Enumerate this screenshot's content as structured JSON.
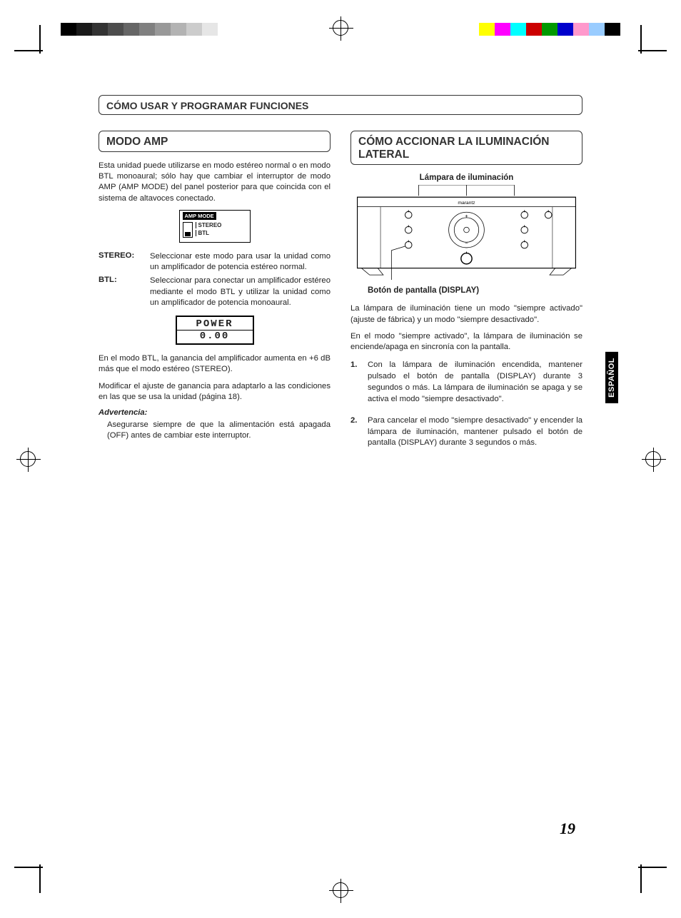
{
  "printMarks": {
    "grayBar": [
      "#000000",
      "#1a1a1a",
      "#333333",
      "#4d4d4d",
      "#666666",
      "#808080",
      "#999999",
      "#b3b3b3",
      "#cccccc",
      "#e6e6e6",
      "#ffffff"
    ],
    "colorBar": [
      "#ffff00",
      "#ff00ff",
      "#00ffff",
      "#cc0000",
      "#009900",
      "#0000cc",
      "#ff99cc",
      "#99ccff",
      "#000000"
    ]
  },
  "header": {
    "title": "CÓMO USAR Y PROGRAMAR FUNCIONES"
  },
  "left": {
    "title": "MODO AMP",
    "intro": "Esta unidad puede utilizarse en modo estéreo normal o en modo BTL monoaural; sólo hay que cambiar el interruptor de modo AMP (AMP MODE) del panel posterior para que coincida con el sistema de altavoces conectado.",
    "switch": {
      "title": "AMP MODE",
      "opt1": "STEREO",
      "opt2": "BTL"
    },
    "defs": {
      "stereo_t": "STEREO:",
      "stereo_d": "Seleccionar este modo para usar la unidad como un amplificador de potencia estéreo normal.",
      "btl_t": "BTL:",
      "btl_d": "Seleccionar para conectar un amplificador estéreo mediante el modo BTL y utilizar la unidad como un amplificador de potencia monoaural."
    },
    "lcd": {
      "line1": "POWER",
      "line2": "0.00"
    },
    "para2": "En el modo BTL, la ganancia del amplificador aumenta en +6 dB más que el modo estéreo (STEREO).",
    "para3": "Modificar el ajuste de ganancia para adaptarlo a las condiciones en las que se usa la unidad (página 18).",
    "warn_t": "Advertencia:",
    "warn_b": "Asegurarse siempre de que la alimentación está apagada (OFF) antes de cambiar este interruptor."
  },
  "right": {
    "title": "CÓMO ACCIONAR LA ILUMINACIÓN LATERAL",
    "label_top": "Lámpara de iluminación",
    "label_bot": "Botón de pantalla (DISPLAY)",
    "device_brand": "marantz",
    "para1": "La lámpara de iluminación tiene un modo \"siempre activado\" (ajuste de fábrica) y un modo \"siempre desactivado\".",
    "para2": "En el modo \"siempre activado\", la lámpara de iluminación se enciende/apaga en sincronía con la pantalla.",
    "step1": "Con la lámpara de iluminación encendida, mantener pulsado el botón de pantalla (DISPLAY) durante 3 segundos o más. La lámpara de iluminación se apaga y se activa el modo \"siempre desactivado\".",
    "step2": "Para cancelar el modo \"siempre desactivado\" y encender la lámpara de iluminación, mantener pulsado el botón de pantalla (DISPLAY) durante 3 segundos o más."
  },
  "sideTab": "ESPAÑOL",
  "pageNumber": "19"
}
